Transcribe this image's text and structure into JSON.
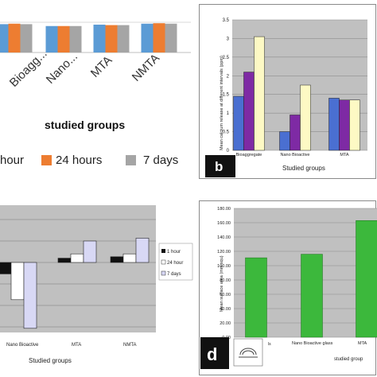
{
  "chart_data": [
    {
      "panel": "a",
      "type": "bar",
      "categories": [
        "Bioagg...",
        "Nano...",
        "MTA",
        "NMTA"
      ],
      "series": [
        {
          "name": "1 hour",
          "color": "#5b9bd5",
          "values": [
            6.0,
            5.6,
            5.9,
            6.1
          ]
        },
        {
          "name": "24 hours",
          "color": "#ed7d31",
          "values": [
            6.1,
            5.6,
            5.8,
            6.2
          ]
        },
        {
          "name": "7 days",
          "color": "#a5a5a5",
          "values": [
            6.0,
            5.6,
            5.8,
            6.1
          ]
        }
      ],
      "xlabel": "studied groups",
      "legend_labels": [
        "hour",
        "24 hours",
        "7 days"
      ],
      "legend_position": "bottom",
      "grid": true
    },
    {
      "panel": "b",
      "type": "bar",
      "categories": [
        "Bioaggregate",
        "Nano Bioactive",
        "MTA"
      ],
      "series": [
        {
          "name": "1 hour",
          "color": "#4a6fd1",
          "values": [
            1.45,
            0.5,
            1.4
          ]
        },
        {
          "name": "24 hours",
          "color": "#7e2aa4",
          "values": [
            2.1,
            0.95,
            1.35
          ]
        },
        {
          "name": "7 days",
          "color": "#fdf9c4",
          "values": [
            3.05,
            1.75,
            1.35
          ]
        }
      ],
      "ylabel": "Mean calcium release at different intervals (ppm)",
      "ylim": [
        0,
        3.5
      ],
      "yticks": [
        "0",
        "0.5",
        "1",
        "1.5",
        "2",
        "2.5",
        "3",
        "3.5"
      ],
      "xlabel": "Studied groups",
      "badge": "b",
      "grid": true
    },
    {
      "panel": "c",
      "type": "bar",
      "categories": [
        "Nano Bioactive",
        "MTA",
        "NMTA"
      ],
      "series": [
        {
          "name": "1 hour",
          "color": "#111111",
          "values": [
            -0.4,
            0.15,
            0.2
          ]
        },
        {
          "name": "24 hour",
          "color": "#ffffff",
          "values": [
            -1.3,
            0.3,
            0.3
          ]
        },
        {
          "name": "7 days",
          "color": "#d8d8f5",
          "values": [
            -2.3,
            0.75,
            0.85
          ]
        }
      ],
      "legend_labels": [
        "1 hour",
        "24 hour",
        "7 days"
      ],
      "xlabel": "Studied groups",
      "grid": true
    },
    {
      "panel": "d",
      "type": "bar",
      "categories": [
        "",
        "Nano Bioactive glass",
        "MTA"
      ],
      "series": [
        {
          "name": "",
          "color": "#3cb83c",
          "values": [
            111,
            116,
            163
          ]
        }
      ],
      "ylabel": "Mean surface area (mm squ)",
      "ylim": [
        0,
        180
      ],
      "yticks": [
        "0.00",
        "20.00",
        "40.00",
        "60.00",
        "80.00",
        "100.00",
        "120.00",
        "140.00",
        "160.00",
        "180.00"
      ],
      "xlabel": "studied group",
      "badge": "d",
      "grid": true
    }
  ],
  "ui": {
    "badge_b": "b",
    "badge_d": "d",
    "xcat_a": [
      "Bioagg...",
      "Nano...",
      "MTA",
      "NMTA"
    ],
    "legend_a": [
      "hour",
      "24 hours",
      "7 days"
    ],
    "xlabel_a": "studied groups",
    "ylabel_b": "Mean calcium release at different intervals (ppm)",
    "xlabel_b": "Studied groups",
    "xcat_b": [
      "Bioaggregate",
      "Nano Bioactive",
      "MTA"
    ],
    "xcat_c": [
      "Nano Bioactive",
      "MTA",
      "NMTA"
    ],
    "legend_c": [
      "1 hour",
      "24 hour",
      "7 days"
    ],
    "xlabel_c": "Studied groups",
    "ylabel_d": "Mean surface area (mm squ)",
    "xcat_d": [
      "Nano Bioactive glass",
      "MTA"
    ],
    "xlabel_d": "studied group",
    "legend_d_tail": "ls"
  }
}
